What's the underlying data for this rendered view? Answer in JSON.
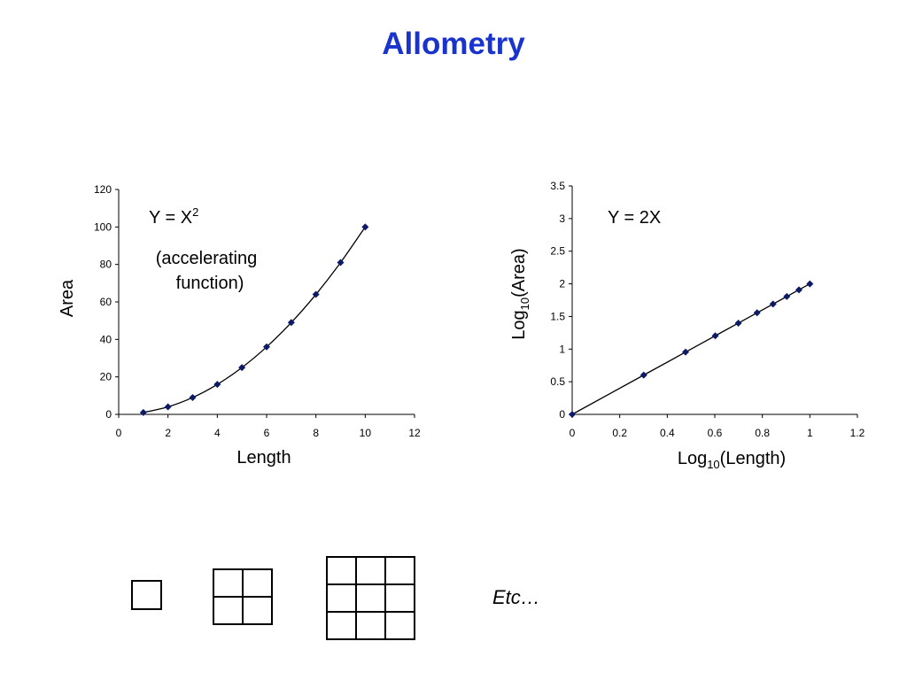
{
  "title": "Allometry",
  "etc_label": "Etc…",
  "colors": {
    "title": "#1a33cc",
    "marker": "#0d1a66",
    "line": "#000000"
  },
  "chart_data": [
    {
      "type": "line",
      "title": "",
      "xlabel": "Length",
      "ylabel": "Area",
      "xlim": [
        0,
        12
      ],
      "ylim": [
        0,
        120
      ],
      "xticks": [
        0,
        2,
        4,
        6,
        8,
        10,
        12
      ],
      "yticks": [
        0,
        20,
        40,
        60,
        80,
        100,
        120
      ],
      "annotations": {
        "equation_base": "Y = X",
        "equation_sup": "2",
        "note_line1": "(accelerating",
        "note_line2": "function)"
      },
      "series": [
        {
          "x": [
            1,
            2,
            3,
            4,
            5,
            6,
            7,
            8,
            9,
            10
          ],
          "values": [
            1,
            4,
            9,
            16,
            25,
            36,
            49,
            64,
            81,
            100
          ]
        }
      ],
      "marker": "diamond",
      "grid": false,
      "legend": "none"
    },
    {
      "type": "line",
      "title": "",
      "xlabel_base": "Log",
      "xlabel_sub": "10",
      "xlabel_rest": "(Length)",
      "ylabel_base": "Log",
      "ylabel_sub": "10",
      "ylabel_rest": "(Area)",
      "xlim": [
        0,
        1.2
      ],
      "ylim": [
        0,
        3.5
      ],
      "xticks": [
        "0",
        "0.2",
        "0.4",
        "0.6",
        "0.8",
        "1",
        "1.2"
      ],
      "yticks": [
        "0",
        "0.5",
        "1",
        "1.5",
        "2",
        "2.5",
        "3",
        "3.5"
      ],
      "annotations": {
        "equation": "Y = 2X"
      },
      "series": [
        {
          "x": [
            0,
            0.301,
            0.477,
            0.602,
            0.699,
            0.778,
            0.845,
            0.903,
            0.954,
            1.0
          ],
          "values": [
            0,
            0.602,
            0.954,
            1.204,
            1.398,
            1.556,
            1.69,
            1.806,
            1.908,
            2.0
          ]
        }
      ],
      "marker": "diamond",
      "grid": false,
      "legend": "none"
    }
  ],
  "squares": [
    {
      "grid": "1x1"
    },
    {
      "grid": "2x2"
    },
    {
      "grid": "3x3"
    }
  ]
}
